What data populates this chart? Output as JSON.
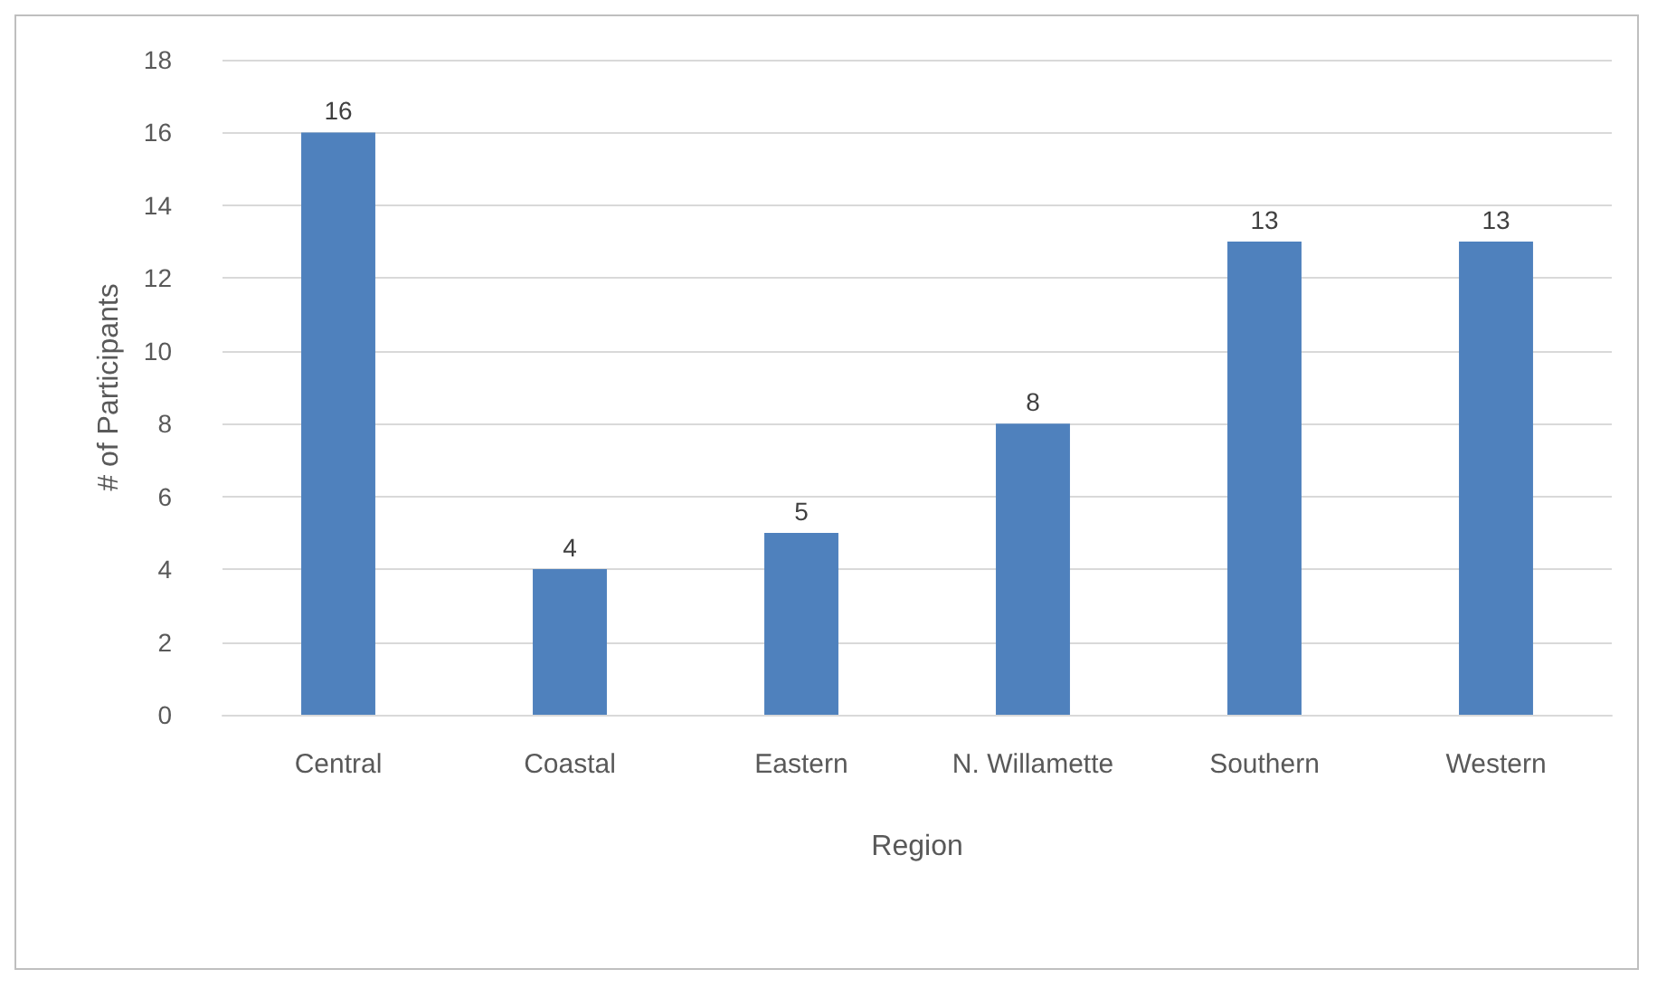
{
  "chart_data": {
    "type": "bar",
    "xlabel": "Region",
    "ylabel": "# of Participants",
    "categories": [
      "Central",
      "Coastal",
      "Eastern",
      "N. Willamette",
      "Southern",
      "Western"
    ],
    "values": [
      16,
      4,
      5,
      8,
      13,
      13
    ],
    "color": "#4f81bd",
    "ylim": [
      0,
      18
    ],
    "yticks": [
      0,
      2,
      4,
      6,
      8,
      10,
      12,
      14,
      16,
      18
    ],
    "grid": "y",
    "data_labels": true
  }
}
